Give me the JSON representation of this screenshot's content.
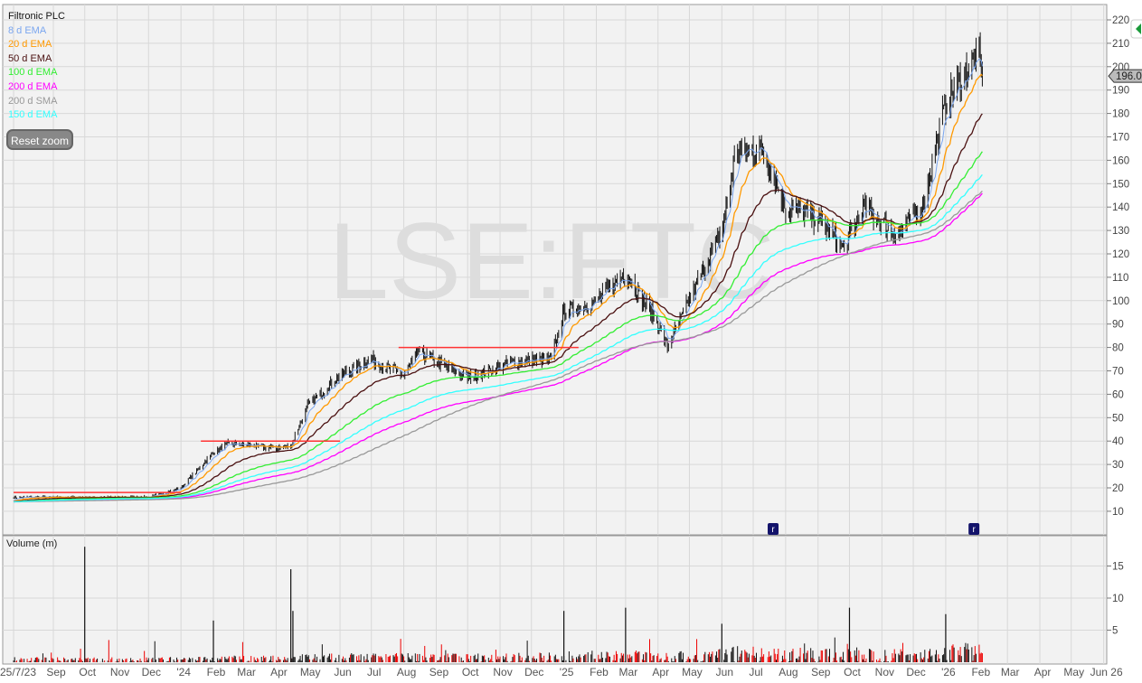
{
  "legend": {
    "title": "Filtronic PLC",
    "items": [
      {
        "label": "8 d EMA",
        "color": "#7aa6f0",
        "period": 8,
        "type": "EMA"
      },
      {
        "label": "20 d EMA",
        "color": "#ff9900",
        "period": 20,
        "type": "EMA"
      },
      {
        "label": "50 d EMA",
        "color": "#4a1010",
        "period": 50,
        "type": "EMA"
      },
      {
        "label": "100 d EMA",
        "color": "#33ee33",
        "period": 100,
        "type": "EMA"
      },
      {
        "label": "200 d EMA",
        "color": "#ff00ff",
        "period": 200,
        "type": "EMA"
      },
      {
        "label": "200 d SMA",
        "color": "#999999",
        "period": 200,
        "type": "SMA"
      },
      {
        "label": "150 d EMA",
        "color": "#33ffff",
        "period": 150,
        "type": "EMA"
      }
    ]
  },
  "reset_zoom": "Reset zoom",
  "watermark": "LSE:FTC",
  "last_price": "196.0",
  "volume_title": "Volume (m)",
  "chart_data": {
    "type": "candlestick",
    "title": "Filtronic PLC",
    "ylim": [
      0,
      225
    ],
    "y_ticks": [
      10,
      20,
      30,
      40,
      50,
      60,
      70,
      80,
      90,
      100,
      110,
      120,
      130,
      140,
      150,
      160,
      170,
      180,
      190,
      200,
      210,
      220
    ],
    "volume_ylim": [
      0,
      20
    ],
    "volume_ticks": [
      5,
      10,
      15
    ],
    "x_ticks": [
      {
        "label": "25/7/23",
        "date": "2023-07-25"
      },
      {
        "label": "Sep",
        "date": "2023-09-01"
      },
      {
        "label": "Oct",
        "date": "2023-10-01"
      },
      {
        "label": "Nov",
        "date": "2023-11-01"
      },
      {
        "label": "Dec",
        "date": "2023-12-01"
      },
      {
        "label": "'24",
        "date": "2024-01-01"
      },
      {
        "label": "Feb",
        "date": "2024-02-01"
      },
      {
        "label": "Mar",
        "date": "2024-03-01"
      },
      {
        "label": "Apr",
        "date": "2024-04-01"
      },
      {
        "label": "May",
        "date": "2024-05-01"
      },
      {
        "label": "Jun",
        "date": "2024-06-01"
      },
      {
        "label": "Jul",
        "date": "2024-07-01"
      },
      {
        "label": "Aug",
        "date": "2024-08-01"
      },
      {
        "label": "Sep",
        "date": "2024-09-01"
      },
      {
        "label": "Oct",
        "date": "2024-10-01"
      },
      {
        "label": "Nov",
        "date": "2024-11-01"
      },
      {
        "label": "Dec",
        "date": "2024-12-01"
      },
      {
        "label": "'25",
        "date": "2025-01-01"
      },
      {
        "label": "Feb",
        "date": "2025-02-01"
      },
      {
        "label": "Mar",
        "date": "2025-03-01"
      },
      {
        "label": "Apr",
        "date": "2025-04-01"
      },
      {
        "label": "May",
        "date": "2025-05-01"
      },
      {
        "label": "Jun",
        "date": "2025-06-01"
      },
      {
        "label": "Jul",
        "date": "2025-07-01"
      },
      {
        "label": "Aug",
        "date": "2025-08-01"
      },
      {
        "label": "Sep",
        "date": "2025-09-01"
      },
      {
        "label": "Oct",
        "date": "2025-10-01"
      },
      {
        "label": "Nov",
        "date": "2025-11-01"
      },
      {
        "label": "Dec",
        "date": "2025-12-01"
      },
      {
        "label": "'26",
        "date": "2026-01-01"
      },
      {
        "label": "Feb",
        "date": "2026-02-01"
      },
      {
        "label": "Mar",
        "date": "2026-03-01"
      },
      {
        "label": "Apr",
        "date": "2026-04-01"
      },
      {
        "label": "May",
        "date": "2026-05-01"
      },
      {
        "label": "Jun 26",
        "date": "2026-06-01"
      }
    ],
    "price_path": [
      [
        "2023-07-25",
        16
      ],
      [
        "2023-12-01",
        16
      ],
      [
        "2024-01-01",
        20
      ],
      [
        "2024-02-01",
        35
      ],
      [
        "2024-02-15",
        39
      ],
      [
        "2024-04-01",
        37
      ],
      [
        "2024-04-15",
        38
      ],
      [
        "2024-05-01",
        55
      ],
      [
        "2024-06-01",
        68
      ],
      [
        "2024-07-01",
        75
      ],
      [
        "2024-08-01",
        68
      ],
      [
        "2024-08-15",
        78
      ],
      [
        "2024-10-01",
        67
      ],
      [
        "2024-11-15",
        74
      ],
      [
        "2024-12-20",
        75
      ],
      [
        "2025-01-01",
        95
      ],
      [
        "2025-02-01",
        100
      ],
      [
        "2025-03-01",
        112
      ],
      [
        "2025-04-01",
        90
      ],
      [
        "2025-04-10",
        80
      ],
      [
        "2025-05-01",
        100
      ],
      [
        "2025-06-01",
        130
      ],
      [
        "2025-06-15",
        165
      ],
      [
        "2025-07-10",
        165
      ],
      [
        "2025-08-01",
        140
      ],
      [
        "2025-09-01",
        135
      ],
      [
        "2025-09-25",
        122
      ],
      [
        "2025-10-15",
        140
      ],
      [
        "2025-11-15",
        128
      ],
      [
        "2025-12-10",
        140
      ],
      [
        "2026-01-01",
        185
      ],
      [
        "2026-02-01",
        205
      ],
      [
        "2026-02-05",
        196
      ]
    ],
    "resistance_lines": [
      {
        "value": 18,
        "from": "2023-07-25",
        "to": "2024-01-01"
      },
      {
        "value": 40,
        "from": "2024-01-20",
        "to": "2024-06-01"
      },
      {
        "value": 80,
        "from": "2024-07-27",
        "to": "2025-01-15"
      }
    ],
    "volume_spikes": [
      [
        "2023-10-01",
        18
      ],
      [
        "2024-02-01",
        6.5
      ],
      [
        "2024-04-15",
        14.5
      ],
      [
        "2024-04-17",
        8
      ],
      [
        "2025-01-01",
        8
      ],
      [
        "2025-03-01",
        8.5
      ],
      [
        "2025-06-01",
        6
      ],
      [
        "2025-10-01",
        8.5
      ],
      [
        "2026-01-01",
        7.5
      ]
    ],
    "event_markers": [
      {
        "label": "r",
        "date": "2025-07-20"
      },
      {
        "label": "r",
        "date": "2026-01-28"
      }
    ],
    "last_value": 196.0
  }
}
